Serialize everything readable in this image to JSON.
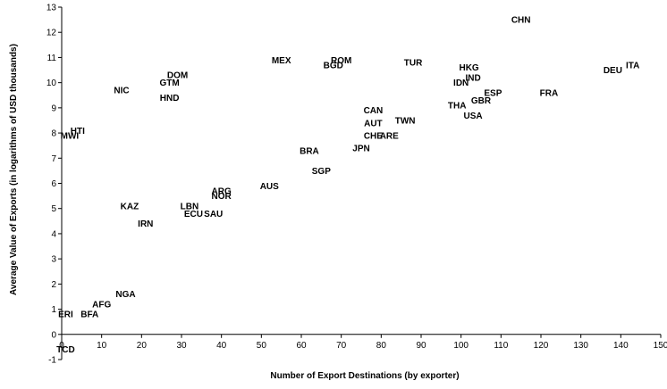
{
  "chart_data": {
    "type": "scatter",
    "title": "",
    "xlabel": "Number of Export Destinations (by exporter)",
    "ylabel": "Average Value of Exports (in logarithms of USD thousands)",
    "xlim": [
      0,
      150
    ],
    "ylim": [
      -1,
      13
    ],
    "x_ticks": [
      0,
      10,
      20,
      30,
      40,
      50,
      60,
      70,
      80,
      90,
      100,
      110,
      120,
      130,
      140,
      150
    ],
    "y_ticks": [
      -1,
      0,
      1,
      2,
      3,
      4,
      5,
      6,
      7,
      8,
      9,
      10,
      11,
      12,
      13
    ],
    "grid": false,
    "legend": "none",
    "points": [
      {
        "label": "CHN",
        "x": 115,
        "y": 12.5
      },
      {
        "label": "ITA",
        "x": 143,
        "y": 10.7
      },
      {
        "label": "DEU",
        "x": 138,
        "y": 10.5
      },
      {
        "label": "HKG",
        "x": 102,
        "y": 10.6
      },
      {
        "label": "IND",
        "x": 103,
        "y": 10.2
      },
      {
        "label": "IDN",
        "x": 100,
        "y": 10.0
      },
      {
        "label": "FRA",
        "x": 122,
        "y": 9.6
      },
      {
        "label": "ESP",
        "x": 108,
        "y": 9.6
      },
      {
        "label": "GBR",
        "x": 105,
        "y": 9.3
      },
      {
        "label": "THA",
        "x": 99,
        "y": 9.1
      },
      {
        "label": "USA",
        "x": 103,
        "y": 8.7
      },
      {
        "label": "TUR",
        "x": 88,
        "y": 10.8
      },
      {
        "label": "MEX",
        "x": 55,
        "y": 10.9
      },
      {
        "label": "ROM",
        "x": 70,
        "y": 10.9
      },
      {
        "label": "BGD",
        "x": 68,
        "y": 10.7
      },
      {
        "label": "TWN",
        "x": 86,
        "y": 8.5
      },
      {
        "label": "ARE",
        "x": 82,
        "y": 7.9
      },
      {
        "label": "CHE",
        "x": 78,
        "y": 7.9
      },
      {
        "label": "AUT",
        "x": 78,
        "y": 8.4
      },
      {
        "label": "JPN",
        "x": 75,
        "y": 7.4
      },
      {
        "label": "CAN",
        "x": 78,
        "y": 8.9
      },
      {
        "label": "SGP",
        "x": 65,
        "y": 6.5
      },
      {
        "label": "BRA",
        "x": 62,
        "y": 7.3
      },
      {
        "label": "AUS",
        "x": 52,
        "y": 5.9
      },
      {
        "label": "DOM",
        "x": 29,
        "y": 10.3
      },
      {
        "label": "GTM",
        "x": 27,
        "y": 10.0
      },
      {
        "label": "NIC",
        "x": 15,
        "y": 9.7
      },
      {
        "label": "HND",
        "x": 27,
        "y": 9.4
      },
      {
        "label": "HTI",
        "x": 4,
        "y": 8.1
      },
      {
        "label": "MWI",
        "x": 2,
        "y": 7.9
      },
      {
        "label": "TCD",
        "x": 1,
        "y": -0.6
      },
      {
        "label": "ERI",
        "x": 1,
        "y": 0.8
      },
      {
        "label": "BFA",
        "x": 7,
        "y": 0.8
      },
      {
        "label": "NGA",
        "x": 16,
        "y": 1.6
      },
      {
        "label": "AFG",
        "x": 10,
        "y": 1.2
      },
      {
        "label": "ARG",
        "x": 40,
        "y": 5.7
      },
      {
        "label": "NOR",
        "x": 40,
        "y": 5.5
      },
      {
        "label": "LBN",
        "x": 32,
        "y": 5.1
      },
      {
        "label": "SAU",
        "x": 38,
        "y": 4.8
      },
      {
        "label": "ECU",
        "x": 33,
        "y": 4.8
      },
      {
        "label": "IRN",
        "x": 21,
        "y": 4.4
      },
      {
        "label": "KAZ",
        "x": 17,
        "y": 5.1
      }
    ]
  }
}
